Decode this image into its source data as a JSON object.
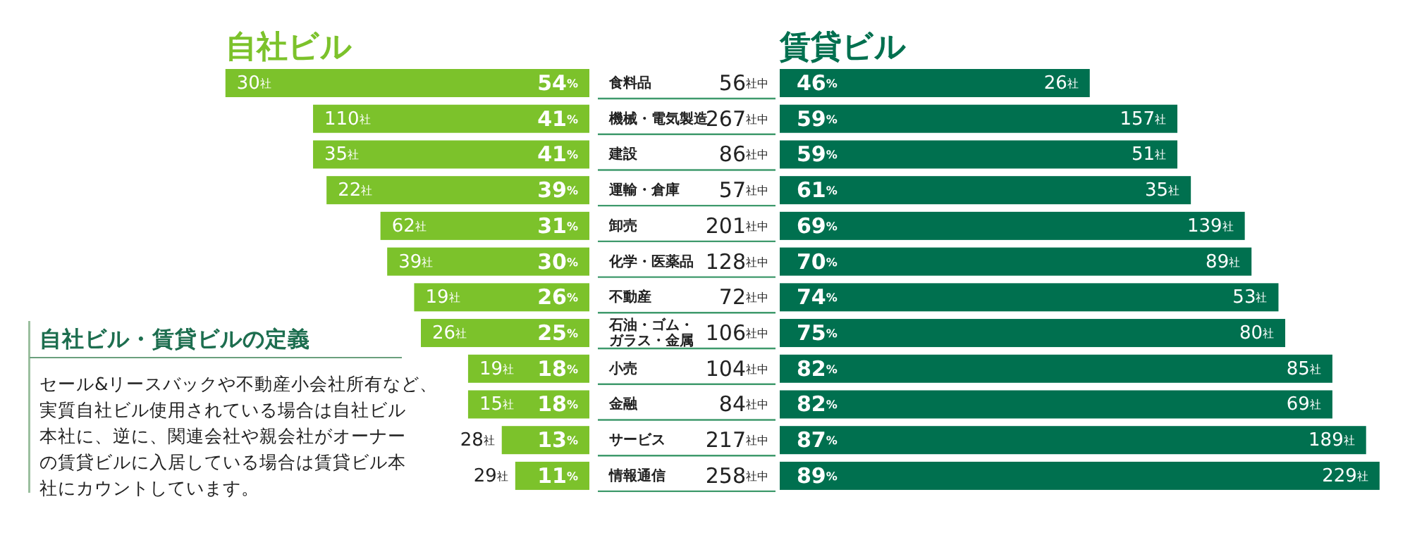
{
  "chart_data": [
    {
      "type": "bar",
      "orientation": "horizontal",
      "title": "自社ビル",
      "tick_labels": "y",
      "categories": [
        "食料品",
        "機械・電気製造",
        "建設",
        "運輸・倉庫",
        "卸売",
        "化学・医薬品",
        "不動産",
        "石油・ゴム・ガラス・金属",
        "小売",
        "金融",
        "サービス",
        "情報通信"
      ],
      "values": [
        54,
        41,
        41,
        39,
        31,
        30,
        26,
        25,
        18,
        18,
        13,
        11
      ],
      "value_labels": [
        "54%",
        "41%",
        "41%",
        "39%",
        "31%",
        "30%",
        "26%",
        "25%",
        "18%",
        "18%",
        "13%",
        "11%"
      ],
      "color": "#7cc22b",
      "annotations": [
        "30社",
        "110社",
        "35社",
        "22社",
        "62社",
        "39社",
        "19社",
        "26社",
        "19社",
        "15社",
        "28社",
        "29社"
      ]
    },
    {
      "type": "bar",
      "orientation": "horizontal",
      "title": "賃貸ビル",
      "tick_labels": "y",
      "categories": [
        "56社中",
        "267社中",
        "86社中",
        "57社中",
        "201社中",
        "128社中",
        "72社中",
        "106社中",
        "104社中",
        "84社中",
        "217社中",
        "258社中"
      ],
      "values": [
        46,
        59,
        59,
        61,
        69,
        70,
        74,
        75,
        82,
        82,
        87,
        89
      ],
      "value_labels": [
        "46%",
        "59%",
        "59%",
        "61%",
        "69%",
        "70%",
        "74%",
        "75%",
        "82%",
        "82%",
        "87%",
        "89%"
      ],
      "color": "#00704f",
      "annotations": [
        "26社",
        "157社",
        "51社",
        "35社",
        "139社",
        "89社",
        "53社",
        "80社",
        "85社",
        "69社",
        "189社",
        "229社"
      ]
    },
    {
      "type": "other",
      "title": "自社ビル・賃貸ビルの定義",
      "annotations": [
        "セール&リースバックや不動産小会社所有など、実質自社ビル使用されている場合は自社ビル本社に、逆に、関連会社や親会社がオーナーの賃貸ビルに入居している場合は賃貸ビル本社にカウントしています。"
      ]
    }
  ]
}
